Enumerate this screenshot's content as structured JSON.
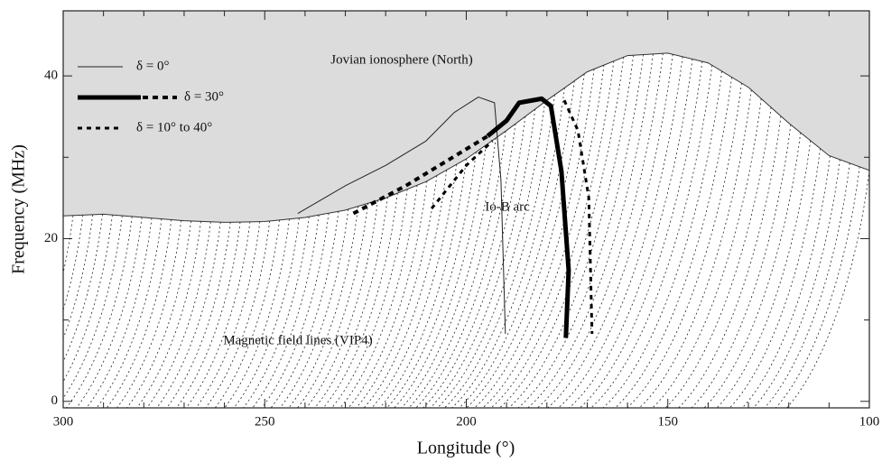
{
  "chart_data": {
    "type": "line",
    "x_label": "Longitude (°)",
    "y_label": "Frequency (MHz)",
    "xlim": [
      300,
      100
    ],
    "ylim": [
      -0.8,
      48
    ],
    "xticks": [
      300,
      250,
      200,
      150,
      100
    ],
    "yticks": [
      0,
      20,
      40
    ],
    "xminor_ticks": [
      290,
      280,
      270,
      260,
      240,
      230,
      220,
      210,
      190,
      180,
      170,
      160,
      140,
      130,
      120,
      110
    ],
    "yminor_ticks": [
      10,
      30
    ],
    "legend_position": "upper left",
    "annotations": [
      "Jovian ionosphere (North)",
      "Io-B arc",
      "Magnetic field lines (VIP4)"
    ],
    "boundary": {
      "color": "#333333",
      "fill": "#dcdcdc",
      "x": [
        300,
        290,
        280,
        270,
        260,
        250,
        240,
        230,
        220,
        210,
        200,
        190,
        180,
        170,
        160,
        150,
        140,
        130,
        120,
        110,
        100
      ],
      "values": [
        22.8,
        23,
        22.6,
        22.2,
        22,
        22.1,
        22.6,
        23.5,
        25,
        27,
        29.8,
        33.3,
        37,
        40.5,
        42.5,
        42.8,
        41.6,
        38.6,
        34.2,
        30.2,
        28.4
      ]
    },
    "series": [
      {
        "name": "δ = 0°",
        "color": "#222222",
        "width": 1,
        "dash": "none",
        "x": [
          241.8,
          230,
          220,
          210,
          203,
          197,
          193,
          191.4,
          190.3
        ],
        "values": [
          23.1,
          26.5,
          29,
          32,
          35.5,
          37.4,
          36.7,
          27.2,
          8.3
        ]
      },
      {
        "name": "δ = 30°",
        "color": "#000000",
        "width": 5,
        "dash": "none",
        "x": [
          194.7,
          190,
          186.9,
          181.3,
          179,
          176.4,
          174.6,
          175.3
        ],
        "values": [
          32.6,
          34.5,
          36.7,
          37.2,
          36.3,
          28.3,
          16.1,
          7.8
        ]
      },
      {
        "color": "#000000",
        "width": 4,
        "dash": "6,5",
        "x": [
          228,
          215,
          205,
          194.7
        ],
        "values": [
          23.1,
          26.5,
          29.5,
          32.6
        ]
      },
      {
        "name": "δ = 10° to 40°",
        "color": "#000000",
        "width": 3,
        "dash": "5,5",
        "x": [
          208.6,
          200,
          193.5,
          null,
          175.7,
          172.3,
          169.6,
          168.8
        ],
        "values": [
          23.7,
          29,
          32,
          null,
          37,
          33.3,
          25,
          8.3
        ]
      }
    ]
  }
}
